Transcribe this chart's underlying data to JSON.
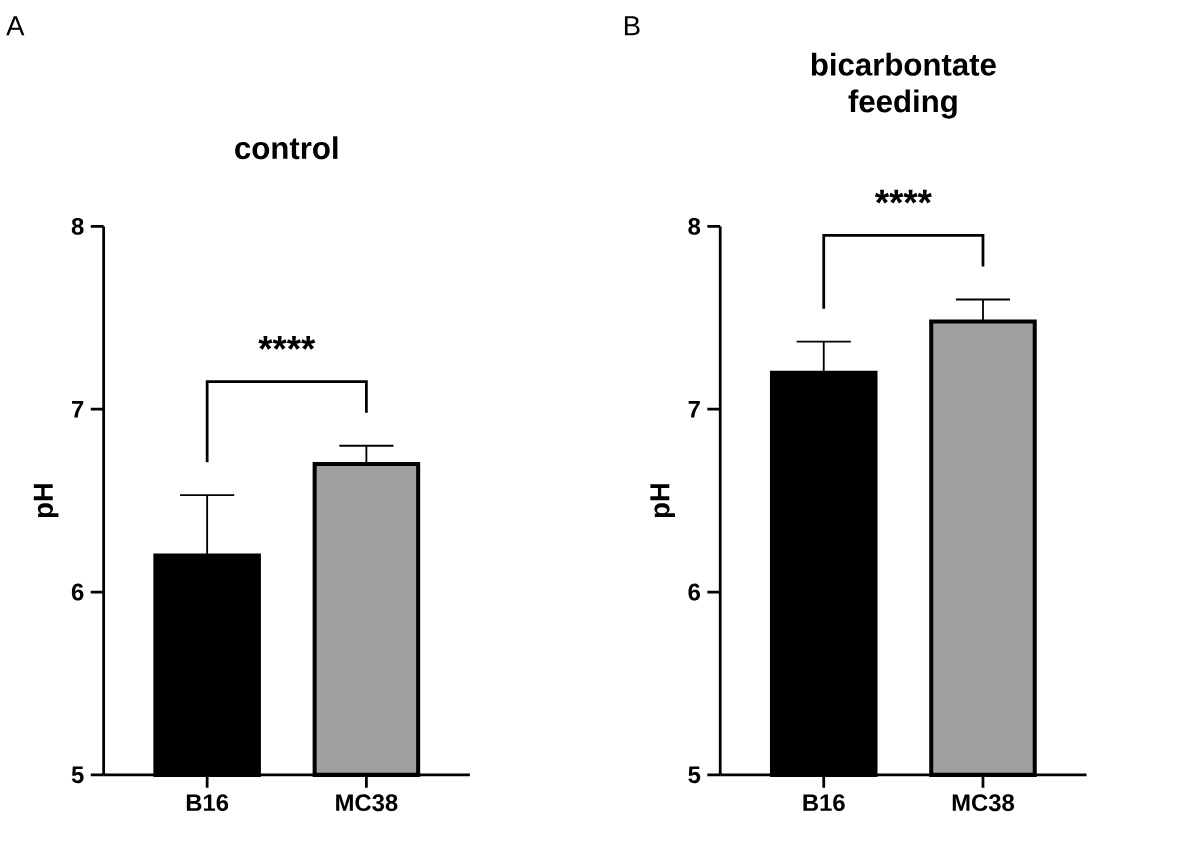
{
  "chart_data": [
    {
      "type": "bar",
      "title": "control",
      "ylabel": "pH",
      "categories": [
        "B16",
        "MC38"
      ],
      "values": [
        6.2,
        6.7
      ],
      "colors": [
        "#000000",
        "#a0a0a0"
      ],
      "errors": [
        [
          6.2,
          6.53
        ],
        [
          6.7,
          6.8
        ]
      ],
      "ylim": [
        5,
        8
      ],
      "yticks": [
        5,
        6,
        7,
        8
      ],
      "annotations": [
        "A",
        "****"
      ]
    },
    {
      "type": "bar",
      "title": "bicarbontate feeding",
      "ylabel": "pH",
      "categories": [
        "B16",
        "MC38"
      ],
      "values": [
        7.2,
        7.48
      ],
      "colors": [
        "#000000",
        "#a0a0a0"
      ],
      "errors": [
        [
          7.2,
          7.37
        ],
        [
          7.48,
          7.6
        ]
      ],
      "ylim": [
        5,
        8
      ],
      "yticks": [
        5,
        6,
        7,
        8
      ],
      "annotations": [
        "B",
        "****"
      ]
    }
  ]
}
